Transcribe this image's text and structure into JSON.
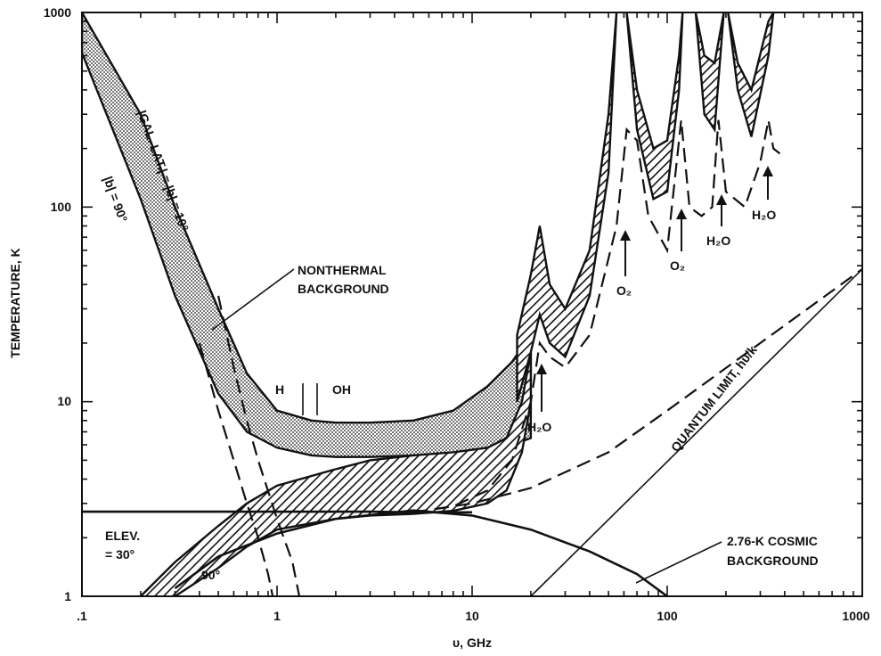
{
  "chart_data": {
    "type": "line",
    "xlabel": "υ, GHz",
    "ylabel": "TEMPERATURE, K",
    "xscale": "log",
    "yscale": "log",
    "xlim": [
      0.1,
      1000
    ],
    "ylim": [
      1,
      1000
    ],
    "x_ticks": [
      ".1",
      "1",
      "10",
      "100",
      "1000"
    ],
    "y_ticks": [
      "1",
      "10",
      "100",
      "1000"
    ],
    "grid": false,
    "bands": [
      {
        "fill": "dotted",
        "x": [
          0.1,
          0.2,
          0.3,
          0.5,
          0.7,
          1,
          1.5,
          2,
          3,
          5,
          8,
          12,
          16,
          20
        ],
        "upper": [
          1000,
          300,
          100,
          30,
          14,
          9,
          8,
          7.8,
          7.8,
          8,
          9,
          12,
          16,
          22
        ],
        "lower": [
          620,
          110,
          35,
          11,
          7,
          5.8,
          5.3,
          5.2,
          5.2,
          5.3,
          5.4,
          5.6,
          6,
          6.5
        ]
      },
      {
        "fill": "hatched",
        "x": [
          0.2,
          0.3,
          0.5,
          0.7,
          1,
          2,
          3,
          5,
          8,
          12,
          15,
          18,
          20
        ],
        "upper": [
          1,
          1.5,
          2.3,
          3,
          3.7,
          4.5,
          5,
          5.3,
          5.5,
          5.8,
          6.5,
          10,
          18
        ],
        "lower": [
          0.9,
          1,
          1.4,
          1.8,
          2.2,
          2.5,
          2.6,
          2.65,
          2.75,
          3,
          3.5,
          5.5,
          10
        ]
      },
      {
        "fill": "hatched",
        "x": [
          17,
          20,
          22.2,
          25,
          30,
          40,
          50,
          55
        ],
        "upper": [
          22,
          45,
          80,
          40,
          30,
          60,
          300,
          1000
        ],
        "lower": [
          10,
          18,
          28,
          20,
          17,
          35,
          150,
          1000
        ]
      },
      {
        "fill": "hatched",
        "x": [
          62,
          70,
          85,
          100,
          115,
          120
        ],
        "upper": [
          1000,
          400,
          200,
          220,
          600,
          1000
        ],
        "lower": [
          1000,
          250,
          110,
          120,
          400,
          1000
        ]
      },
      {
        "fill": "hatched",
        "x": [
          140,
          155,
          175,
          195
        ],
        "upper": [
          1000,
          600,
          550,
          1000
        ],
        "lower": [
          1000,
          300,
          250,
          1000
        ]
      },
      {
        "fill": "hatched",
        "x": [
          205,
          230,
          270,
          330,
          350
        ],
        "upper": [
          1000,
          550,
          400,
          900,
          1000
        ],
        "lower": [
          1000,
          400,
          230,
          600,
          1000
        ]
      }
    ],
    "series": [
      {
        "style": "dashed",
        "x": [
          0.4,
          0.5,
          0.6,
          0.7,
          0.8,
          0.9,
          0.95
        ],
        "y": [
          20,
          9,
          5,
          3,
          2,
          1.3,
          1
        ]
      },
      {
        "style": "dashed",
        "x": [
          0.5,
          0.6,
          0.7,
          0.8,
          1,
          1.2,
          1.3
        ],
        "y": [
          35,
          15,
          8,
          5,
          2.5,
          1.5,
          1
        ]
      },
      {
        "style": "dashed",
        "x": [
          5,
          8,
          12,
          16,
          20,
          22.2,
          25,
          30,
          40,
          55,
          62,
          70,
          80,
          100,
          118,
          130,
          150,
          170,
          183,
          200,
          250,
          300,
          330,
          350,
          400
        ],
        "y": [
          2.7,
          2.9,
          3.5,
          5,
          10,
          20,
          17,
          15,
          22,
          80,
          250,
          220,
          90,
          60,
          280,
          100,
          90,
          100,
          280,
          120,
          100,
          170,
          280,
          200,
          180
        ]
      },
      {
        "style": "dashed",
        "x": [
          5,
          10,
          20,
          50,
          100,
          300,
          1000
        ],
        "y": [
          2.7,
          3,
          3.6,
          5.5,
          9,
          20,
          48
        ]
      },
      {
        "style": "solid",
        "x": [
          0.1,
          0.3,
          1,
          3,
          5,
          10
        ],
        "y": [
          2.72,
          2.72,
          2.72,
          2.72,
          2.7,
          2.7
        ]
      },
      {
        "style": "solid",
        "x": [
          0.3,
          0.5,
          1,
          2,
          5,
          10,
          20,
          40,
          70,
          100
        ],
        "y": [
          1.1,
          1.6,
          2.1,
          2.5,
          2.76,
          2.6,
          2.2,
          1.7,
          1.3,
          1
        ]
      },
      {
        "style": "thin",
        "x": [
          20,
          1000
        ],
        "y": [
          1,
          48
        ]
      }
    ],
    "annotations": [
      {
        "text": "|GAL. LAT.| = |b| = 10°"
      },
      {
        "text": "|b| = 90°"
      },
      {
        "text": "NONTHERMAL"
      },
      {
        "text": "BACKGROUND"
      },
      {
        "text": "H"
      },
      {
        "text": "OH"
      },
      {
        "text": "ELEV."
      },
      {
        "text": "= 30°"
      },
      {
        "text": "90°"
      },
      {
        "text": "QUANTUM LIMIT, hυ/k"
      },
      {
        "text": "2.76-K COSMIC"
      },
      {
        "text": "BACKGROUND"
      },
      {
        "text": "H₂O"
      },
      {
        "text": "O₂"
      },
      {
        "text": "O₂"
      },
      {
        "text": "H₂O"
      },
      {
        "text": "H₂O"
      }
    ]
  }
}
